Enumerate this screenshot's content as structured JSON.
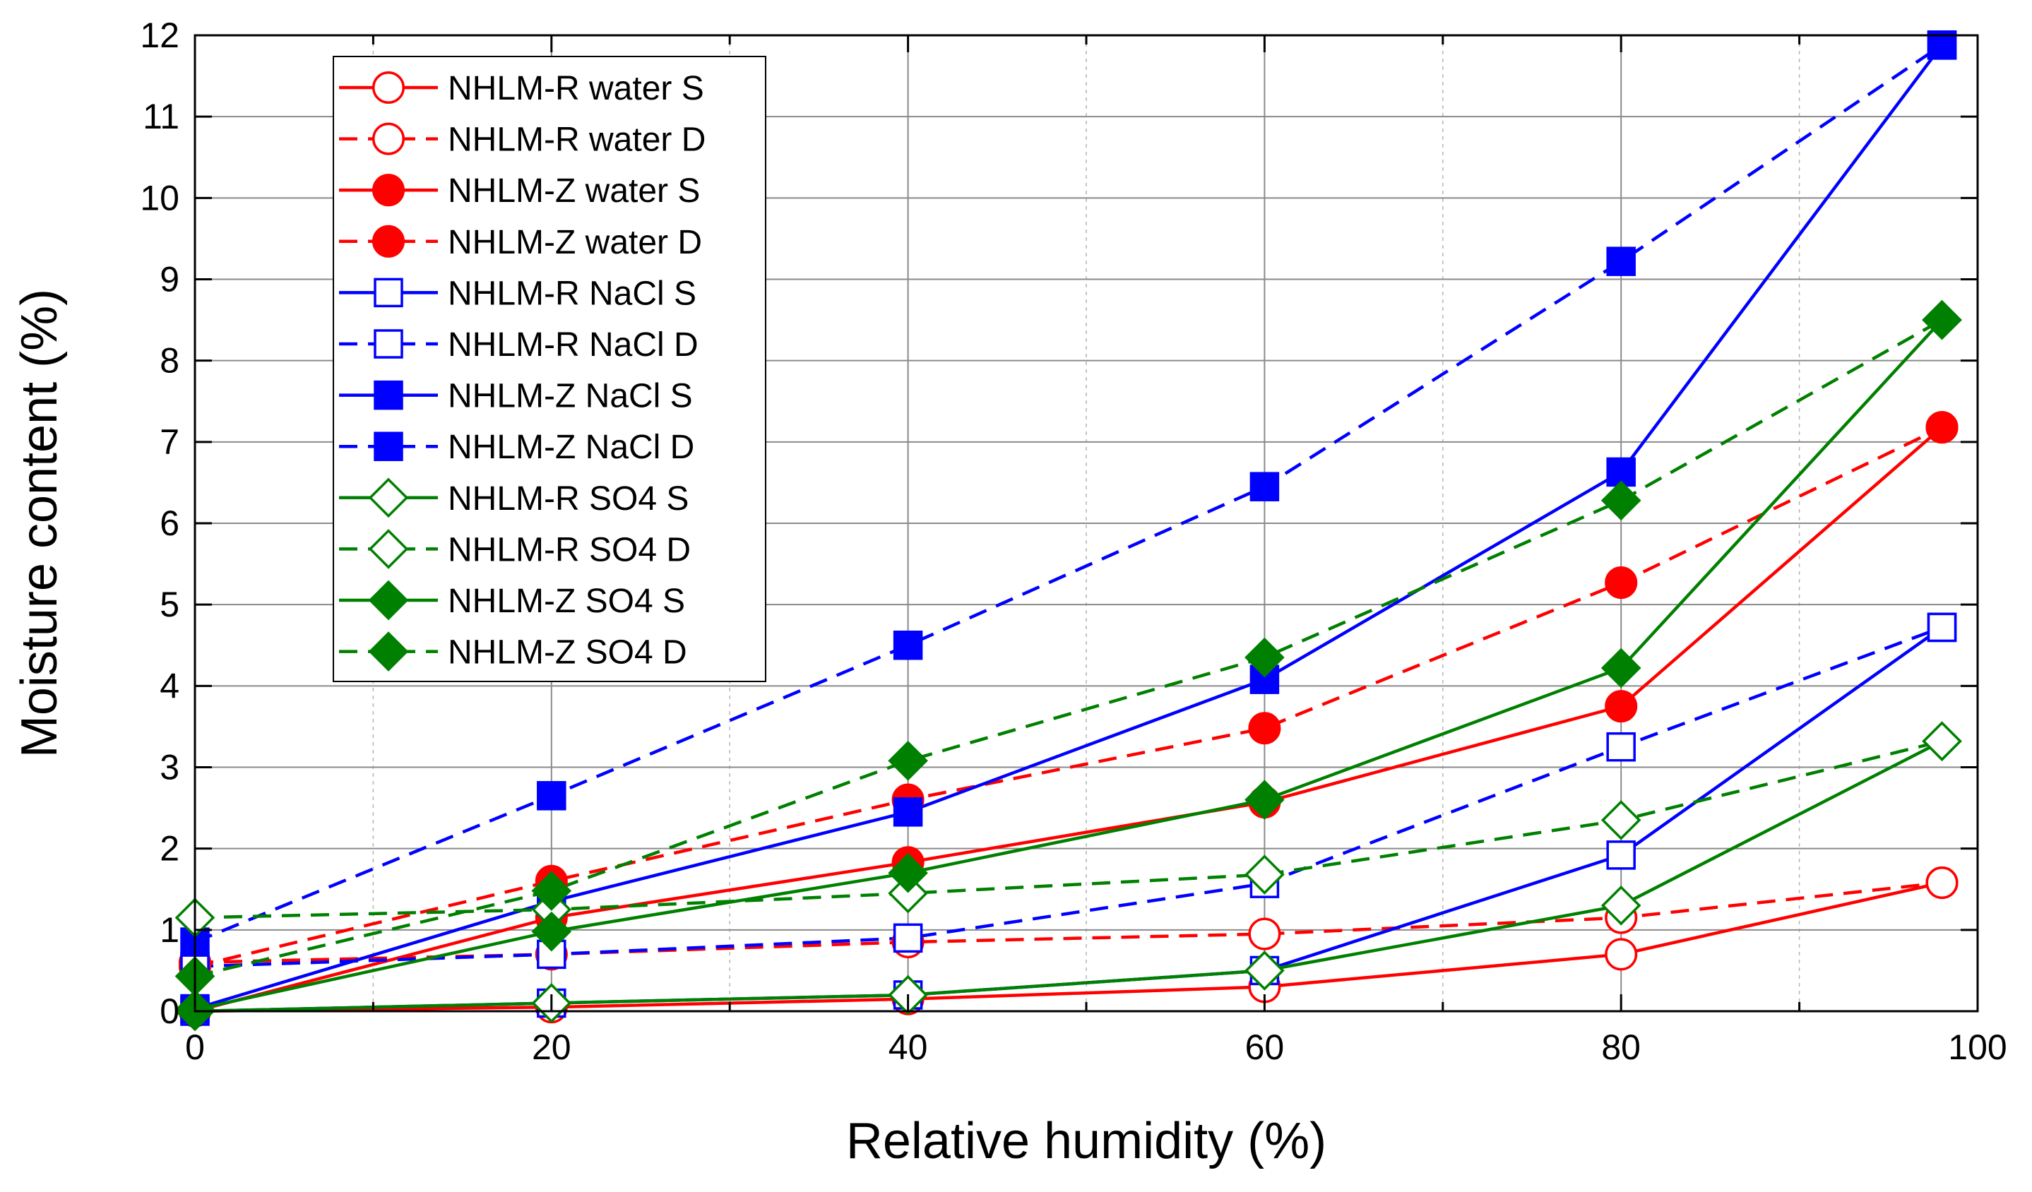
{
  "chart_data": {
    "type": "line",
    "title": "",
    "xlabel": "Relative humidity (%)",
    "ylabel": "Moisture content (%)",
    "xlim": [
      0,
      100
    ],
    "ylim": [
      0,
      12
    ],
    "xticks": [
      0,
      20,
      40,
      60,
      80,
      100
    ],
    "xtick_labels": [
      "0",
      "20",
      "40",
      "60",
      "80",
      "100"
    ],
    "yticks": [
      0,
      1,
      2,
      3,
      4,
      5,
      6,
      7,
      8,
      9,
      10,
      11,
      12
    ],
    "ytick_labels": [
      "0",
      "1",
      "2",
      "3",
      "4",
      "5",
      "6",
      "7",
      "8",
      "9",
      "10",
      "11",
      "12"
    ],
    "x": [
      0,
      20,
      40,
      60,
      80,
      98
    ],
    "grid": true,
    "legend_position": "top-left",
    "series": [
      {
        "name": "NHLM-R water S",
        "color": "#ff0000",
        "dash": "solid",
        "marker": "circle",
        "filled": false,
        "values": [
          0,
          0.05,
          0.15,
          0.3,
          0.7,
          1.58
        ]
      },
      {
        "name": "NHLM-R water D",
        "color": "#ff0000",
        "dash": "dashed",
        "marker": "circle",
        "filled": false,
        "values": [
          0.6,
          0.7,
          0.85,
          0.95,
          1.15,
          1.58
        ]
      },
      {
        "name": "NHLM-Z water S",
        "color": "#ff0000",
        "dash": "solid",
        "marker": "circle",
        "filled": true,
        "values": [
          0,
          1.15,
          1.83,
          2.57,
          3.75,
          7.18
        ]
      },
      {
        "name": "NHLM-Z water D",
        "color": "#ff0000",
        "dash": "dashed",
        "marker": "circle",
        "filled": true,
        "values": [
          0.55,
          1.6,
          2.6,
          3.48,
          5.27,
          7.18
        ]
      },
      {
        "name": "NHLM-R NaCl S",
        "color": "#0000ff",
        "dash": "solid",
        "marker": "square",
        "filled": false,
        "values": [
          0,
          0.1,
          0.2,
          0.5,
          1.92,
          4.72
        ]
      },
      {
        "name": "NHLM-R NaCl D",
        "color": "#0000ff",
        "dash": "dashed",
        "marker": "square",
        "filled": false,
        "values": [
          0.55,
          0.7,
          0.9,
          1.57,
          3.25,
          4.72
        ]
      },
      {
        "name": "NHLM-Z NaCl S",
        "color": "#0000ff",
        "dash": "solid",
        "marker": "square",
        "filled": true,
        "values": [
          0.03,
          1.35,
          2.45,
          4.08,
          6.63,
          11.88
        ]
      },
      {
        "name": "NHLM-Z NaCl D",
        "color": "#0000ff",
        "dash": "dashed",
        "marker": "square",
        "filled": true,
        "values": [
          0.85,
          2.65,
          4.5,
          6.45,
          9.22,
          11.88
        ]
      },
      {
        "name": "NHLM-R SO4 S",
        "color": "#008000",
        "dash": "solid",
        "marker": "diamond",
        "filled": false,
        "values": [
          0,
          0.1,
          0.2,
          0.5,
          1.3,
          3.32
        ]
      },
      {
        "name": "NHLM-R SO4 D",
        "color": "#008000",
        "dash": "dashed",
        "marker": "diamond",
        "filled": false,
        "values": [
          1.15,
          1.25,
          1.45,
          1.68,
          2.35,
          3.32
        ]
      },
      {
        "name": "NHLM-Z SO4 S",
        "color": "#008000",
        "dash": "solid",
        "marker": "diamond",
        "filled": true,
        "values": [
          0.02,
          0.98,
          1.7,
          2.6,
          4.22,
          8.5
        ]
      },
      {
        "name": "NHLM-Z SO4 D",
        "color": "#008000",
        "dash": "dashed",
        "marker": "diamond",
        "filled": true,
        "values": [
          0.43,
          1.48,
          3.08,
          4.35,
          6.28,
          8.5
        ]
      }
    ]
  }
}
